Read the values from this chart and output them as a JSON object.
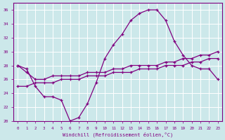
{
  "xlabel": "Windchill (Refroidissement éolien,°C)",
  "bg_color": "#cce8ea",
  "line_color": "#800080",
  "grid_color": "#ffffff",
  "x_hours": [
    0,
    1,
    2,
    3,
    4,
    5,
    6,
    7,
    8,
    9,
    10,
    11,
    12,
    13,
    14,
    15,
    16,
    17,
    18,
    19,
    20,
    21,
    22,
    23
  ],
  "line1": [
    28.0,
    27.5,
    25.0,
    23.5,
    23.5,
    23.0,
    20.0,
    20.5,
    22.5,
    25.5,
    29.0,
    31.0,
    32.5,
    34.5,
    35.5,
    36.0,
    36.0,
    34.5,
    31.5,
    29.5,
    28.0,
    27.5,
    27.5,
    26.0
  ],
  "line2": [
    28.0,
    27.0,
    26.0,
    26.0,
    26.5,
    26.5,
    26.5,
    26.5,
    27.0,
    27.0,
    27.0,
    27.5,
    27.5,
    28.0,
    28.0,
    28.0,
    28.0,
    28.5,
    28.5,
    29.0,
    29.0,
    29.5,
    29.5,
    30.0
  ],
  "line3": [
    25.0,
    25.0,
    25.5,
    25.5,
    25.5,
    26.0,
    26.0,
    26.0,
    26.5,
    26.5,
    26.5,
    27.0,
    27.0,
    27.0,
    27.5,
    27.5,
    27.5,
    28.0,
    28.0,
    28.0,
    28.5,
    28.5,
    29.0,
    29.0
  ],
  "ylim": [
    20,
    37
  ],
  "yticks": [
    20,
    22,
    24,
    26,
    28,
    30,
    32,
    34,
    36
  ],
  "xlim": [
    -0.5,
    23.5
  ]
}
